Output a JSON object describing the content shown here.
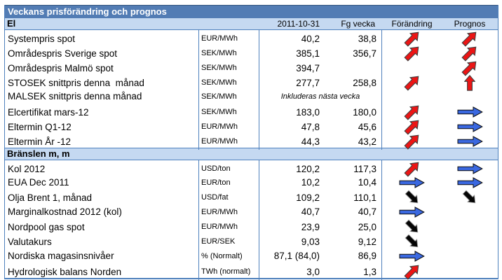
{
  "title": "Veckans prisförändring och prognos",
  "columns": {
    "date": "2011-10-31",
    "prev_week": "Fg vecka",
    "change": "Förändring",
    "forecast": "Prognos"
  },
  "colors": {
    "title_bar_blue": "#527cb4",
    "band_light_blue": "#c5d9f1",
    "border_blue": "#4f81bd",
    "arrow_red": "#ec1515",
    "arrow_blue": "#3a68e0",
    "arrow_black": "#050505"
  },
  "icons": {
    "red-up-right": "red-up-right-arrow-icon (price increase)",
    "red-up": "red-up-arrow-icon (strong increase)",
    "blue-right": "blue-right-arrow-icon (unchanged)",
    "black-down-right": "black-down-right-arrow-icon (decrease)"
  },
  "sections": [
    {
      "label": "El",
      "rows": [
        {
          "label": "Systempris spot",
          "unit": "EUR/MWh",
          "value": "40,2",
          "prev": "38,8",
          "change": "red-up-right",
          "forecast": "red-up-right"
        },
        {
          "label": "Områdespris Sverige spot",
          "unit": "SEK/MWh",
          "value": "385,1",
          "prev": "356,7",
          "change": "red-up-right",
          "forecast": "red-up-right"
        },
        {
          "label": "Områdespris Malmö spot",
          "unit": "SEK/MWh",
          "value": "394,7",
          "prev": "",
          "change": null,
          "forecast": "red-up-right"
        },
        {
          "label": "STOSEK snittpris denna  månad",
          "unit": "SEK/MWh",
          "value": "277,7",
          "prev": "258,8",
          "change": "red-up-right",
          "forecast": "red-up"
        },
        {
          "label": "MALSEK snittpris denna månad",
          "unit": "SEK/MWh",
          "note": "Inkluderas nästa vecka",
          "change": null,
          "forecast": null
        },
        {
          "label": "Elcertifikat mars-12",
          "unit": "SEK/MWh",
          "value": "183,0",
          "prev": "180,0",
          "change": "red-up-right",
          "forecast": "blue-right"
        },
        {
          "label": "Eltermin Q1-12",
          "unit": "EUR/MWh",
          "value": "47,8",
          "prev": "45,6",
          "change": "red-up-right",
          "forecast": "blue-right"
        },
        {
          "label": "Eltermin År -12",
          "unit": "EUR/MWh",
          "value": "44,3",
          "prev": "43,2",
          "change": "red-up-right",
          "forecast": "blue-right"
        }
      ]
    },
    {
      "label": "Bränslen m, m",
      "rows": [
        {
          "label": "Kol 2012",
          "unit": "USD/ton",
          "value": "120,2",
          "prev": "117,3",
          "change": "red-up-right",
          "forecast": "blue-right"
        },
        {
          "label": "EUA Dec 2011",
          "unit": "EUR/ton",
          "value": "10,2",
          "prev": "10,4",
          "change": "blue-right",
          "forecast": "blue-right"
        },
        {
          "label": "Olja Brent 1, månad",
          "unit": "USD/fat",
          "value": "109,2",
          "prev": "110,1",
          "change": "black-down-right",
          "forecast": "black-down-right"
        },
        {
          "label": "Marginalkostnad 2012 (kol)",
          "unit": "EUR/MWh",
          "value": "40,7",
          "prev": "40,7",
          "change": "blue-right",
          "forecast": null
        },
        {
          "label": "Nordpool gas spot",
          "unit": "EUR/MWh",
          "value": "23,9",
          "prev": "25,0",
          "change": "black-down-right",
          "forecast": null
        },
        {
          "label": "Valutakurs",
          "unit": "EUR/SEK",
          "value": "9,03",
          "prev": "9,12",
          "change": "black-down-right",
          "forecast": null
        },
        {
          "label": "Nordiska magasinsnivåer",
          "unit": "% (Normalt)",
          "value": "87,1 (84,0)",
          "prev": "86,9",
          "change": "blue-right",
          "forecast": null
        },
        {
          "label": "Hydrologisk balans Norden",
          "unit": "TWh (normalt)",
          "value": "3,0",
          "prev": "1,3",
          "change": "red-up-right",
          "forecast": null
        }
      ]
    }
  ]
}
